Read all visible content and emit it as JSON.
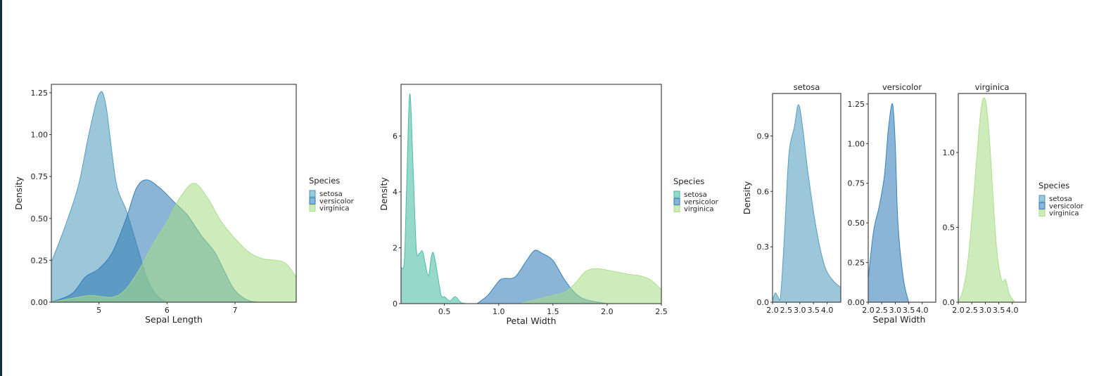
{
  "colors": {
    "setosa_a": "#4a97bb",
    "versicolor": "#2a78b5",
    "virginica": "#a6dc84",
    "setosa_b": "#3fb89e",
    "frame": "#444444",
    "background": "#ffffff"
  },
  "legend_title": "Species",
  "legend_labels": [
    "setosa",
    "versicolor",
    "virginica"
  ],
  "chart_data": [
    {
      "type": "area",
      "xlabel": "Sepal Length",
      "ylabel": "Density",
      "xlim": [
        4.3,
        7.9
      ],
      "ylim": [
        0,
        1.3
      ],
      "xticks": [
        "5",
        "6",
        "7"
      ],
      "yticks": [
        "0.00",
        "0.25",
        "0.50",
        "0.75",
        "1.00",
        "1.25"
      ],
      "legend": "right",
      "series": [
        {
          "name": "setosa",
          "x": [
            4.3,
            4.5,
            4.7,
            4.85,
            5.0,
            5.1,
            5.25,
            5.4,
            5.55,
            5.7,
            5.85,
            6.0
          ],
          "y": [
            0.24,
            0.45,
            0.7,
            1.0,
            1.24,
            1.18,
            0.72,
            0.55,
            0.35,
            0.15,
            0.04,
            0.0
          ]
        },
        {
          "name": "versicolor",
          "x": [
            4.3,
            4.6,
            4.8,
            5.0,
            5.2,
            5.4,
            5.55,
            5.7,
            5.9,
            6.1,
            6.3,
            6.5,
            6.7,
            6.85,
            7.0,
            7.2,
            7.4
          ],
          "y": [
            0,
            0.05,
            0.15,
            0.2,
            0.3,
            0.5,
            0.68,
            0.73,
            0.68,
            0.6,
            0.52,
            0.4,
            0.3,
            0.18,
            0.07,
            0.01,
            0
          ]
        },
        {
          "name": "virginica",
          "x": [
            4.3,
            4.7,
            4.9,
            5.2,
            5.4,
            5.6,
            5.8,
            6.0,
            6.2,
            6.4,
            6.6,
            6.8,
            7.0,
            7.2,
            7.4,
            7.6,
            7.75,
            7.9
          ],
          "y": [
            0,
            0.03,
            0.04,
            0.03,
            0.08,
            0.2,
            0.35,
            0.48,
            0.63,
            0.71,
            0.62,
            0.48,
            0.38,
            0.3,
            0.26,
            0.25,
            0.23,
            0.15
          ]
        }
      ]
    },
    {
      "type": "area",
      "xlabel": "Petal Width",
      "ylabel": "Density",
      "xlim": [
        0.1,
        2.5
      ],
      "ylim": [
        0,
        7.85
      ],
      "xticks": [
        "0.5",
        "1.0",
        "1.5",
        "2.0",
        "2.5"
      ],
      "yticks": [
        "0",
        "2",
        "4",
        "6"
      ],
      "legend": "right",
      "series": [
        {
          "name": "setosa",
          "x": [
            0.1,
            0.13,
            0.15,
            0.18,
            0.21,
            0.24,
            0.27,
            0.3,
            0.35,
            0.38,
            0.4,
            0.43,
            0.47,
            0.5,
            0.55,
            0.6,
            0.65,
            0.7
          ],
          "y": [
            1.3,
            1.5,
            4,
            7.5,
            5,
            2,
            1.8,
            1.85,
            1.0,
            1.7,
            1.8,
            1.2,
            0.3,
            0.25,
            0.1,
            0.25,
            0.05,
            0
          ]
        },
        {
          "name": "versicolor",
          "x": [
            0.8,
            0.9,
            1.0,
            1.05,
            1.15,
            1.25,
            1.33,
            1.4,
            1.5,
            1.6,
            1.7,
            1.8,
            2.0
          ],
          "y": [
            0,
            0.3,
            0.8,
            0.9,
            0.95,
            1.5,
            1.9,
            1.8,
            1.55,
            0.9,
            0.4,
            0.15,
            0
          ]
        },
        {
          "name": "virginica",
          "x": [
            1.2,
            1.4,
            1.6,
            1.7,
            1.8,
            1.9,
            2.0,
            2.2,
            2.3,
            2.4,
            2.5
          ],
          "y": [
            0,
            0.2,
            0.4,
            0.7,
            1.15,
            1.25,
            1.2,
            1.05,
            1.0,
            0.85,
            0.5
          ]
        }
      ]
    },
    {
      "type": "area",
      "xlabel": "Sepal Width",
      "ylabel": "Density",
      "legend": "right",
      "panels": [
        {
          "title": "setosa",
          "xlim": [
            2.0,
            4.5
          ],
          "ylim": [
            0,
            1.13
          ],
          "xticks": [
            "2.0",
            "2.5",
            "3.0",
            "3.5",
            "4.0"
          ],
          "yticks": [
            "0.0",
            "0.3",
            "0.6",
            "0.9"
          ],
          "x": [
            2.0,
            2.1,
            2.2,
            2.3,
            2.45,
            2.6,
            2.8,
            2.95,
            3.1,
            3.3,
            3.6,
            3.9,
            4.2,
            4.5
          ],
          "y": [
            0.01,
            0.05,
            0.03,
            0.04,
            0.4,
            0.8,
            0.95,
            1.07,
            0.95,
            0.7,
            0.4,
            0.2,
            0.12,
            0.08
          ]
        },
        {
          "title": "versicolor",
          "xlim": [
            2.0,
            4.5
          ],
          "ylim": [
            0,
            1.316
          ],
          "xticks": [
            "2.0",
            "2.5",
            "3.0",
            "3.5",
            "4.0"
          ],
          "yticks": [
            "0.00",
            "0.25",
            "0.50",
            "0.75",
            "1.00",
            "1.25"
          ],
          "x": [
            2.0,
            2.2,
            2.4,
            2.6,
            2.75,
            2.9,
            3.0,
            3.1,
            3.3,
            3.5
          ],
          "y": [
            0.15,
            0.45,
            0.6,
            0.8,
            1.1,
            1.25,
            1.0,
            0.5,
            0.15,
            0
          ]
        },
        {
          "title": "virginica",
          "xlim": [
            2.0,
            4.5
          ],
          "ylim": [
            0,
            1.394
          ],
          "xticks": [
            "2.0",
            "2.5",
            "3.0",
            "3.5",
            "4.0"
          ],
          "yticks": [
            "0.0",
            "0.5",
            "1.0"
          ],
          "x": [
            2.0,
            2.2,
            2.4,
            2.7,
            2.85,
            3.0,
            3.15,
            3.4,
            3.6,
            3.75,
            3.9,
            4.1
          ],
          "y": [
            0,
            0.1,
            0.35,
            1.0,
            1.3,
            1.35,
            1.1,
            0.4,
            0.15,
            0.15,
            0.05,
            0
          ]
        }
      ]
    }
  ]
}
